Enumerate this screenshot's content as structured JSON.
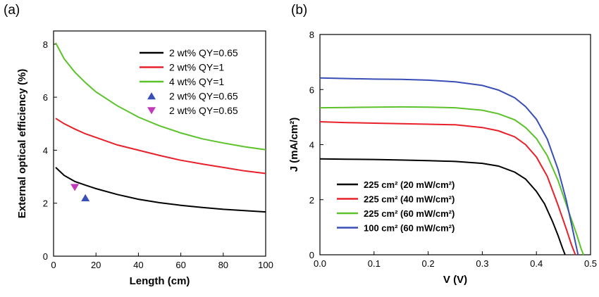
{
  "panels": {
    "a_label": "(a)",
    "b_label": "(b)"
  },
  "chart_data": [
    {
      "type": "line",
      "xlabel": "Length (cm)",
      "ylabel": "External optical efficiency (%)",
      "xlim": [
        0,
        100
      ],
      "ylim": [
        0,
        8.5
      ],
      "xticks": [
        "0",
        "20",
        "40",
        "60",
        "80",
        "100"
      ],
      "yticks": [
        "0",
        "2",
        "4",
        "6",
        "8"
      ],
      "grid": false,
      "legend_position": "top-right",
      "series": [
        {
          "name": "2 wt% QY=0.65",
          "color": "#000000",
          "kind": "line",
          "x": [
            1,
            5,
            10,
            15,
            20,
            30,
            40,
            50,
            60,
            70,
            80,
            90,
            100
          ],
          "y": [
            3.35,
            3.05,
            2.82,
            2.68,
            2.55,
            2.33,
            2.15,
            2.02,
            1.92,
            1.84,
            1.77,
            1.72,
            1.67
          ]
        },
        {
          "name": "2 wt% QY=1",
          "color": "#e8202a",
          "kind": "line",
          "x": [
            1,
            5,
            10,
            15,
            20,
            30,
            40,
            50,
            60,
            70,
            80,
            90,
            100
          ],
          "y": [
            5.2,
            5.0,
            4.8,
            4.62,
            4.48,
            4.2,
            4.0,
            3.8,
            3.62,
            3.48,
            3.35,
            3.22,
            3.12
          ]
        },
        {
          "name": "4 wt% QY=1",
          "color": "#5cc22a",
          "kind": "line",
          "x": [
            1,
            5,
            10,
            15,
            20,
            30,
            40,
            50,
            60,
            70,
            80,
            90,
            100
          ],
          "y": [
            8.05,
            7.45,
            6.95,
            6.55,
            6.2,
            5.68,
            5.25,
            4.92,
            4.65,
            4.43,
            4.27,
            4.13,
            4.02
          ]
        },
        {
          "name": "2 wt% QY=0.65",
          "color": "#3a4fb5",
          "kind": "marker",
          "marker": "triangle-up",
          "x": [
            15
          ],
          "y": [
            2.2
          ]
        },
        {
          "name": "2 wt% QY=0.65",
          "color": "#c23ab8",
          "kind": "marker",
          "marker": "triangle-down",
          "x": [
            10
          ],
          "y": [
            2.6
          ]
        }
      ]
    },
    {
      "type": "line",
      "xlabel": "V (V)",
      "ylabel": "J (mA/cm²)",
      "xlim": [
        0,
        0.5
      ],
      "ylim": [
        0,
        8
      ],
      "xticks": [
        "0.0",
        "0.1",
        "0.2",
        "0.3",
        "0.4",
        "0.5"
      ],
      "yticks": [
        "0",
        "2",
        "4",
        "6",
        "8"
      ],
      "grid": false,
      "legend_position": "bottom-left",
      "series": [
        {
          "name": "225 cm² (20 mW/cm²)",
          "color": "#000000",
          "x": [
            0,
            0.05,
            0.1,
            0.15,
            0.2,
            0.25,
            0.3,
            0.33,
            0.36,
            0.38,
            0.4,
            0.415,
            0.43,
            0.44,
            0.448,
            0.453
          ],
          "y": [
            3.48,
            3.47,
            3.46,
            3.44,
            3.42,
            3.39,
            3.32,
            3.22,
            3.0,
            2.75,
            2.3,
            1.85,
            1.2,
            0.7,
            0.25,
            0
          ]
        },
        {
          "name": "225 cm² (40 mW/cm²)",
          "color": "#e8202a",
          "x": [
            0,
            0.05,
            0.1,
            0.15,
            0.2,
            0.25,
            0.3,
            0.33,
            0.36,
            0.38,
            0.4,
            0.42,
            0.44,
            0.455,
            0.465,
            0.472
          ],
          "y": [
            4.83,
            4.8,
            4.78,
            4.76,
            4.74,
            4.72,
            4.62,
            4.5,
            4.28,
            4.0,
            3.55,
            2.85,
            1.8,
            0.95,
            0.35,
            0
          ]
        },
        {
          "name": "225 cm² (60 mW/cm²)",
          "color": "#5cc22a",
          "x": [
            0,
            0.05,
            0.1,
            0.15,
            0.2,
            0.25,
            0.3,
            0.33,
            0.36,
            0.38,
            0.4,
            0.42,
            0.44,
            0.46,
            0.475,
            0.483,
            0.487
          ],
          "y": [
            5.34,
            5.35,
            5.36,
            5.37,
            5.36,
            5.34,
            5.25,
            5.12,
            4.9,
            4.62,
            4.22,
            3.6,
            2.7,
            1.55,
            0.7,
            0.2,
            0
          ]
        },
        {
          "name": "100 cm² (60 mW/cm²)",
          "color": "#3a4fb5",
          "x": [
            0,
            0.05,
            0.1,
            0.15,
            0.2,
            0.25,
            0.3,
            0.33,
            0.36,
            0.38,
            0.4,
            0.42,
            0.44,
            0.455,
            0.465,
            0.472,
            0.477
          ],
          "y": [
            6.42,
            6.4,
            6.38,
            6.37,
            6.34,
            6.28,
            6.15,
            5.98,
            5.7,
            5.38,
            4.92,
            4.2,
            3.1,
            2.0,
            1.1,
            0.45,
            0
          ]
        }
      ]
    }
  ]
}
